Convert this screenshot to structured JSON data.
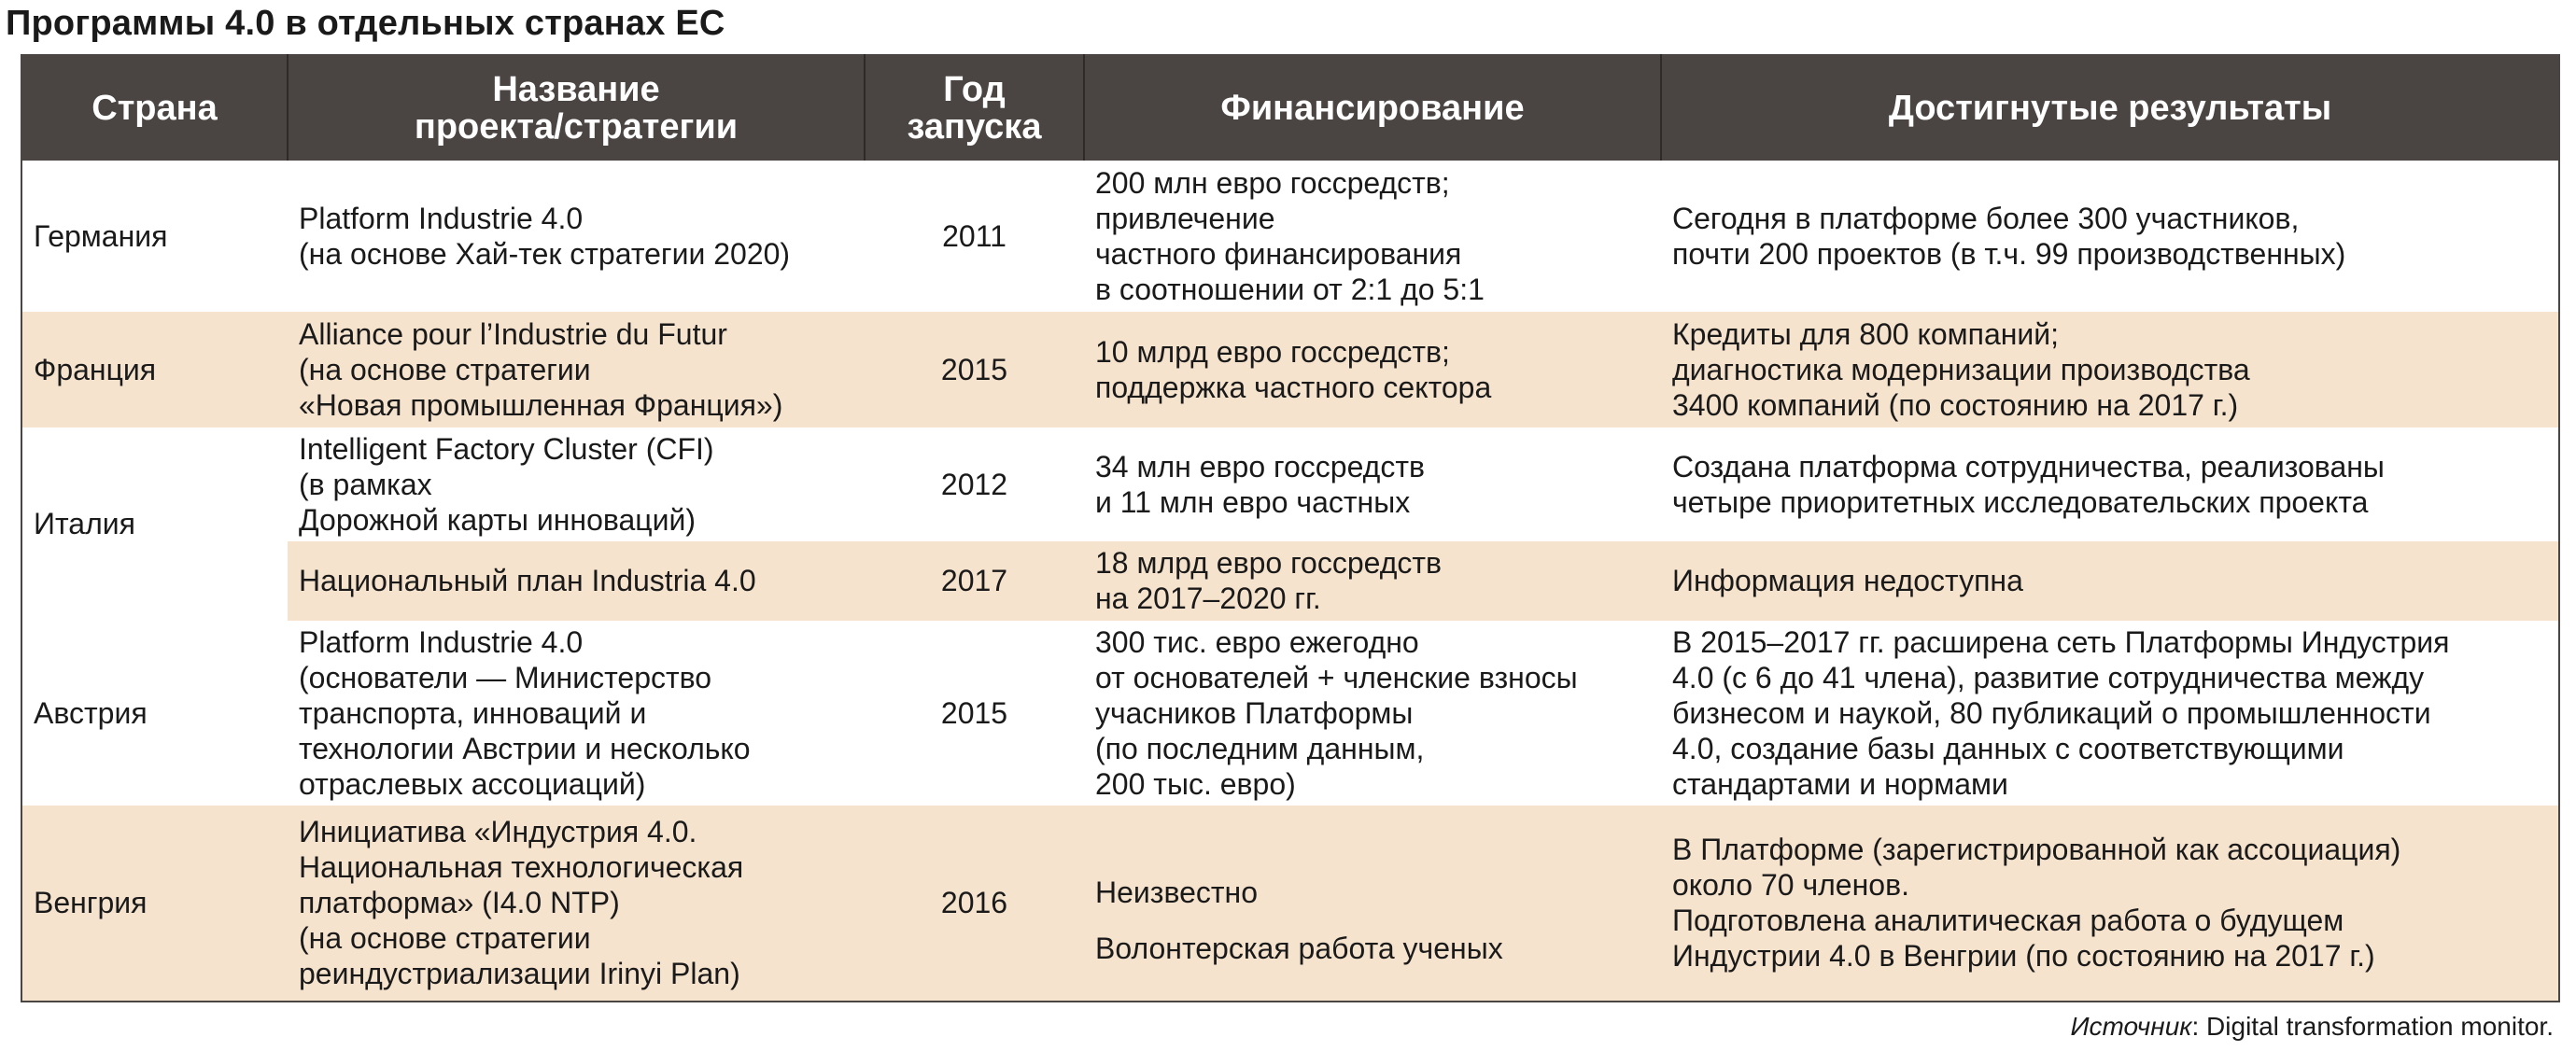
{
  "title": "Программы 4.0 в отдельных странах ЕС",
  "table": {
    "headers": [
      "Страна",
      "Название\nпроекта/стратегии",
      "Год\nзапуска",
      "Финансирование",
      "Достигнутые результаты"
    ],
    "rows": [
      {
        "country": "Германия",
        "project": "Platform Industrie 4.0\n(на основе Хай-тек стратегии 2020)",
        "year": "2011",
        "funding": "200 млн евро госсредств;\nпривлечение\nчастного финансирования\nв соотношении от 2:1 до 5:1",
        "results": "Сегодня в платформе более 300 участников,\nпочти 200 проектов (в т.ч. 99 производственных)"
      },
      {
        "country": "Франция",
        "project": "Alliance pour l’Industrie du Futur\n(на основе стратегии\n«Новая промышленная Франция»)",
        "year": "2015",
        "funding": "10 млрд евро госсредств;\nподдержка частного сектора",
        "results": "Кредиты для 800 компаний;\nдиагностика модернизации производства\n3400 компаний (по состоянию на 2017 г.)"
      },
      {
        "country": "Италия",
        "project": "Intelligent Factory Cluster (CFI)\n(в рамках\nДорожной карты инноваций)",
        "year": "2012",
        "funding": "34 млн евро госсредств\nи 11 млн евро частных",
        "results": "Создана платформа сотрудничества, реализованы\nчетыре приоритетных исследовательских проекта"
      },
      {
        "country": "",
        "project": "Национальный план Industria 4.0",
        "year": "2017",
        "funding": "18 млрд евро госсредств\nна 2017–2020 гг.",
        "results": "Информация недоступна"
      },
      {
        "country": "Австрия",
        "project": "Platform Industrie 4.0\n(основатели — Министерство\nтранспорта, инноваций и\nтехнологии Австрии и несколько\nотраслевых ассоциаций)",
        "year": "2015",
        "funding": "300 тис. евро ежегодно\nот основателей + членские взносы\nучасников Платформы\n(по последним данным,\n200 тыс. евро)",
        "results": "В 2015–2017 гг. расширена сеть Платформы Индустрия\n4.0 (с 6 до 41 члена), развитие сотрудничества между\nбизнесом и наукой, 80 публикаций о промышленности\n4.0, создание базы данных с соответствующими\nстандартами и нормами"
      },
      {
        "country": "Венгрия",
        "project": "Инициатива «Индустрия 4.0.\nНациональная технологическая\nплатформа» (I4.0 NTP)\n(на основе стратегии\nреиндустриализации Irinyi Plan)",
        "year": "2016",
        "funding_a": "Неизвестно",
        "funding_b": "Волонтерская работа ученых",
        "results": "В Платформе (зарегистрированной как ассоциация)\nоколо 70 членов.\nПодготовлена аналитическая работа о будущем\nИндустрии 4.0 в Венгрии (по состоянию на 2017 г.)"
      }
    ]
  },
  "source": {
    "label": "Источник",
    "text": ": Digital transformation monitor."
  },
  "colors": {
    "header_bg": "#4a4442",
    "row_tint": "#f6e3cd",
    "row_white": "#ffffff"
  }
}
